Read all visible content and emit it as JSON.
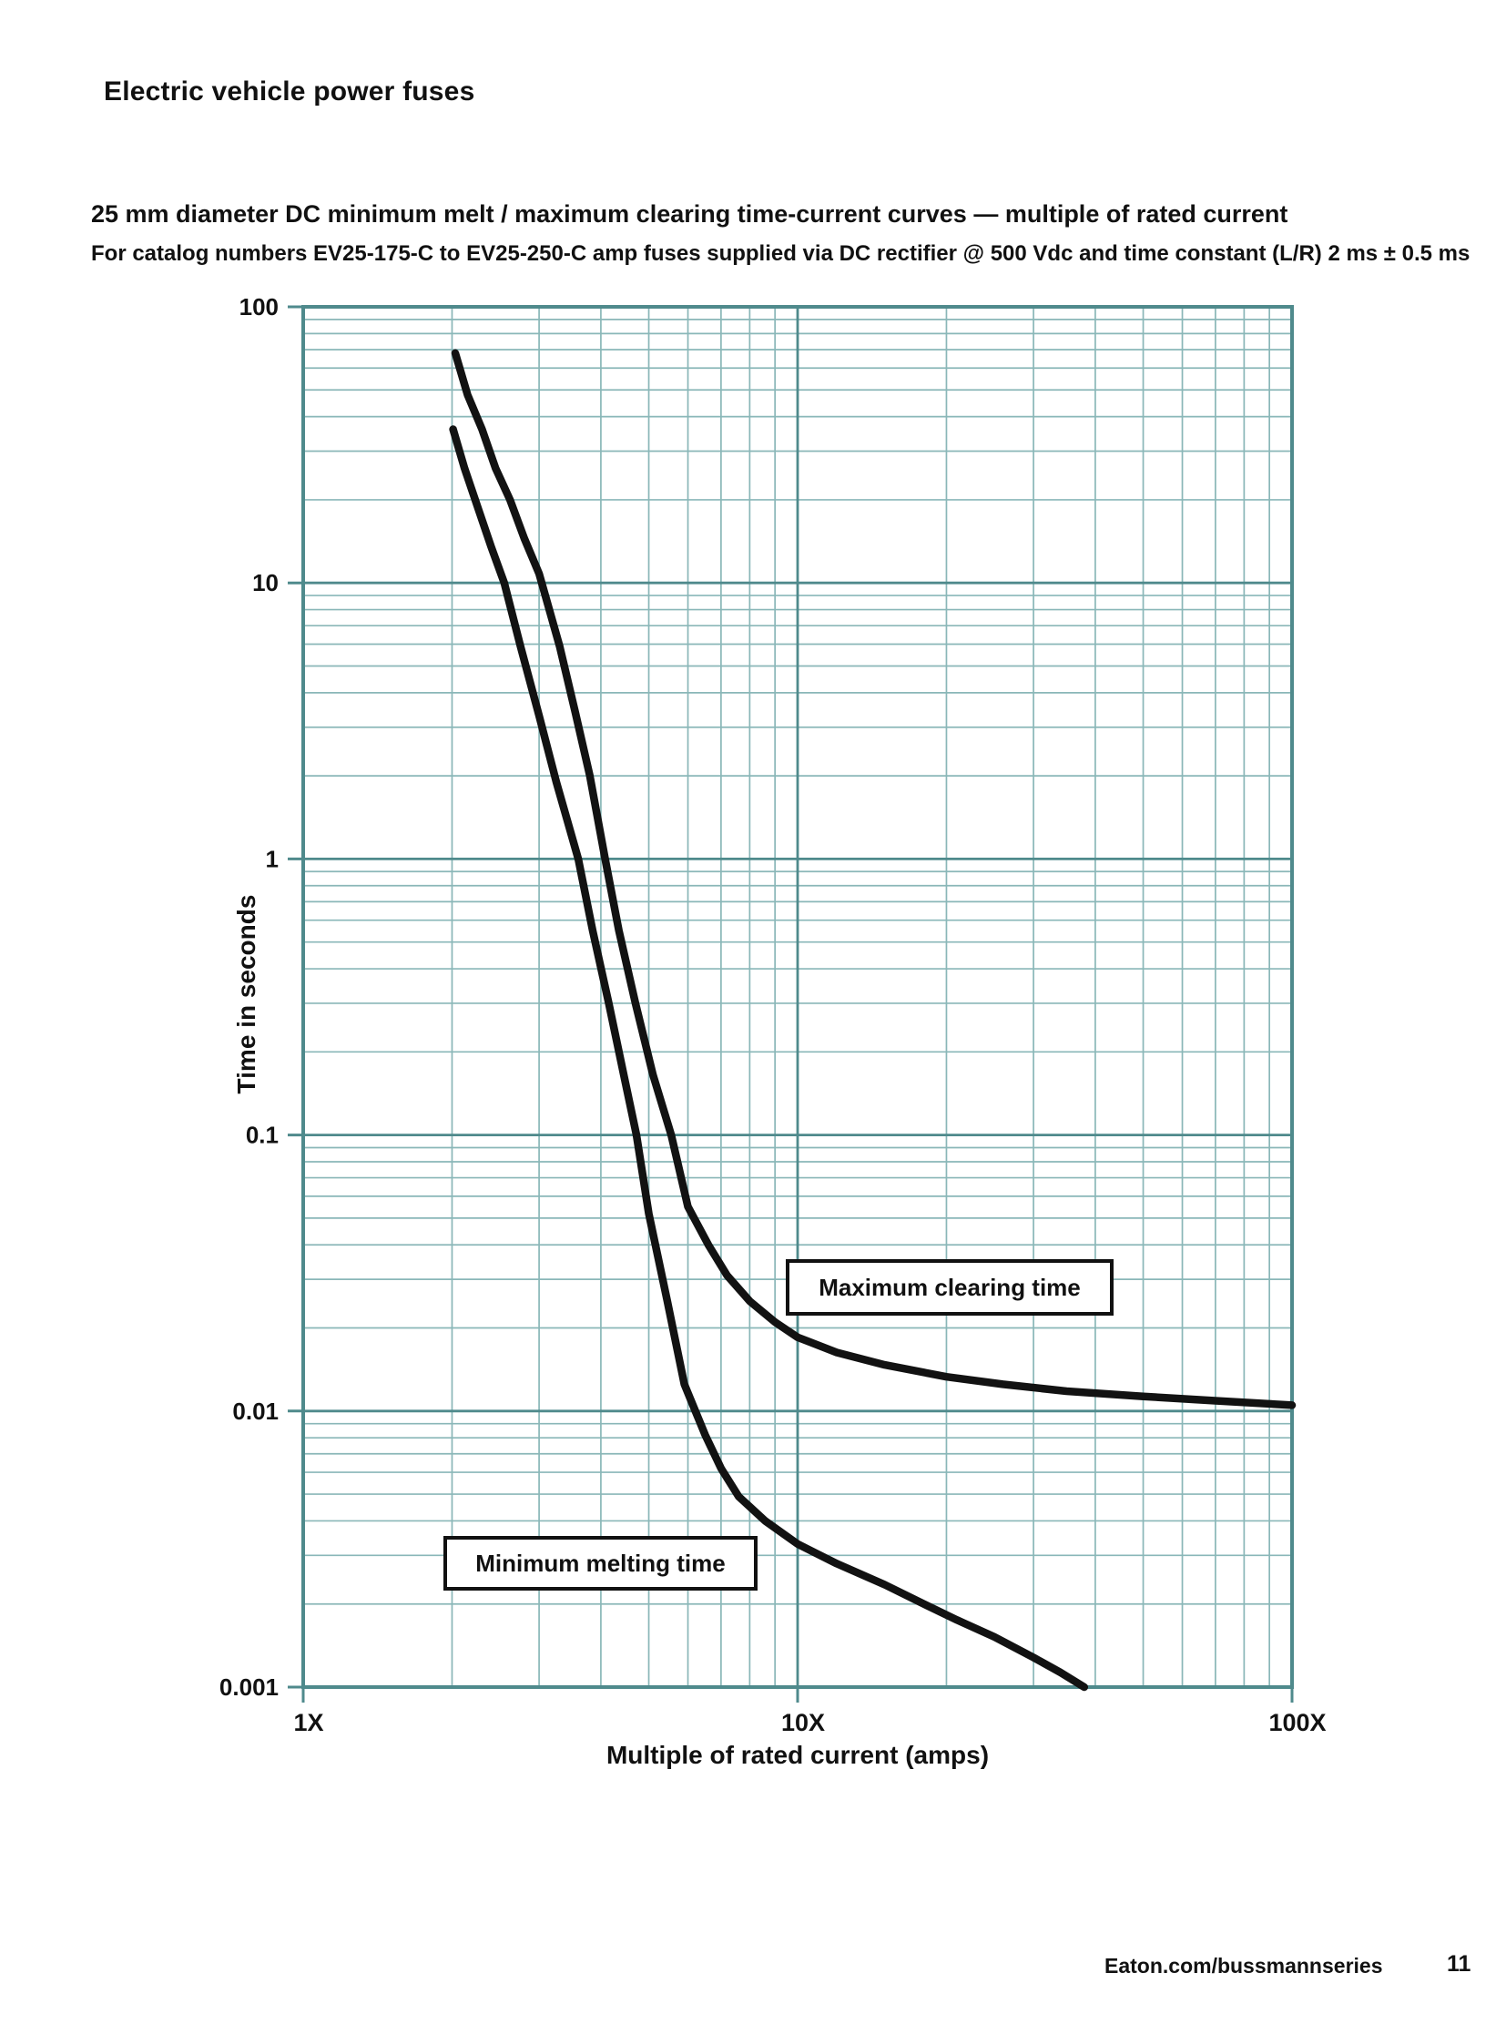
{
  "page": {
    "header": "Electric vehicle power fuses",
    "footer_url": "Eaton.com/bussmannseries",
    "page_number": "11"
  },
  "chart_data": {
    "type": "line",
    "title": "25 mm diameter DC minimum melt / maximum clearing time-current curves — multiple of rated current",
    "subtitle": "For catalog numbers EV25-175-C to EV25-250-C amp fuses supplied via DC rectifier @ 500 Vdc and time constant (L/R) 2 ms ± 0.5 ms",
    "xlabel": "Multiple of rated current (amps)",
    "ylabel": "Time in seconds",
    "x_scale": "log",
    "y_scale": "log",
    "xlim": [
      1,
      100
    ],
    "ylim": [
      0.001,
      100
    ],
    "grid": "log-log with minor decade gridlines",
    "legend_position": "labeled boxes on plot",
    "xticks": [
      {
        "value": 1,
        "label": "1X"
      },
      {
        "value": 10,
        "label": "10X"
      },
      {
        "value": 100,
        "label": "100X"
      }
    ],
    "yticks": [
      {
        "value": 100,
        "label": "100"
      },
      {
        "value": 10,
        "label": "10"
      },
      {
        "value": 1,
        "label": "1"
      },
      {
        "value": 0.1,
        "label": "0.1"
      },
      {
        "value": 0.01,
        "label": "0.01"
      },
      {
        "value": 0.001,
        "label": "0.001"
      }
    ],
    "series": [
      {
        "name": "Maximum clearing time",
        "points": [
          [
            2.03,
            68
          ],
          [
            2.15,
            48
          ],
          [
            2.3,
            36
          ],
          [
            2.45,
            26
          ],
          [
            2.62,
            20
          ],
          [
            2.8,
            14.5
          ],
          [
            3.0,
            10.8
          ],
          [
            3.3,
            5.9
          ],
          [
            3.55,
            3.4
          ],
          [
            3.8,
            2.0
          ],
          [
            4.08,
            1.0
          ],
          [
            4.35,
            0.55
          ],
          [
            4.7,
            0.3
          ],
          [
            5.1,
            0.165
          ],
          [
            5.55,
            0.1
          ],
          [
            6.0,
            0.055
          ],
          [
            6.6,
            0.04
          ],
          [
            7.2,
            0.031
          ],
          [
            8.0,
            0.025
          ],
          [
            9.0,
            0.021
          ],
          [
            10,
            0.0185
          ],
          [
            12,
            0.0163
          ],
          [
            15,
            0.0147
          ],
          [
            20,
            0.0133
          ],
          [
            26,
            0.0125
          ],
          [
            35,
            0.0118
          ],
          [
            50,
            0.0113
          ],
          [
            70,
            0.0109
          ],
          [
            100,
            0.0105
          ]
        ]
      },
      {
        "name": "Minimum melting time",
        "points": [
          [
            2.01,
            36
          ],
          [
            2.12,
            26
          ],
          [
            2.25,
            19
          ],
          [
            2.4,
            13.5
          ],
          [
            2.55,
            10
          ],
          [
            2.75,
            5.9
          ],
          [
            3.0,
            3.3
          ],
          [
            3.25,
            1.9
          ],
          [
            3.6,
            1.0
          ],
          [
            3.85,
            0.55
          ],
          [
            4.15,
            0.3
          ],
          [
            4.45,
            0.165
          ],
          [
            4.72,
            0.1
          ],
          [
            5.0,
            0.052
          ],
          [
            5.45,
            0.025
          ],
          [
            5.9,
            0.0125
          ],
          [
            6.5,
            0.0082
          ],
          [
            7.0,
            0.0062
          ],
          [
            7.6,
            0.0049
          ],
          [
            8.6,
            0.004
          ],
          [
            10,
            0.0033
          ],
          [
            12,
            0.0028
          ],
          [
            15,
            0.00235
          ],
          [
            18,
            0.002
          ],
          [
            21,
            0.00175
          ],
          [
            25,
            0.00152
          ],
          [
            30,
            0.00128
          ],
          [
            34,
            0.00113
          ],
          [
            38,
            0.001
          ]
        ]
      }
    ],
    "colors": {
      "curve": "#121212",
      "grid_major": "#4f8a8c",
      "grid_minor": "#8ab7b8",
      "text": "#111111"
    }
  }
}
